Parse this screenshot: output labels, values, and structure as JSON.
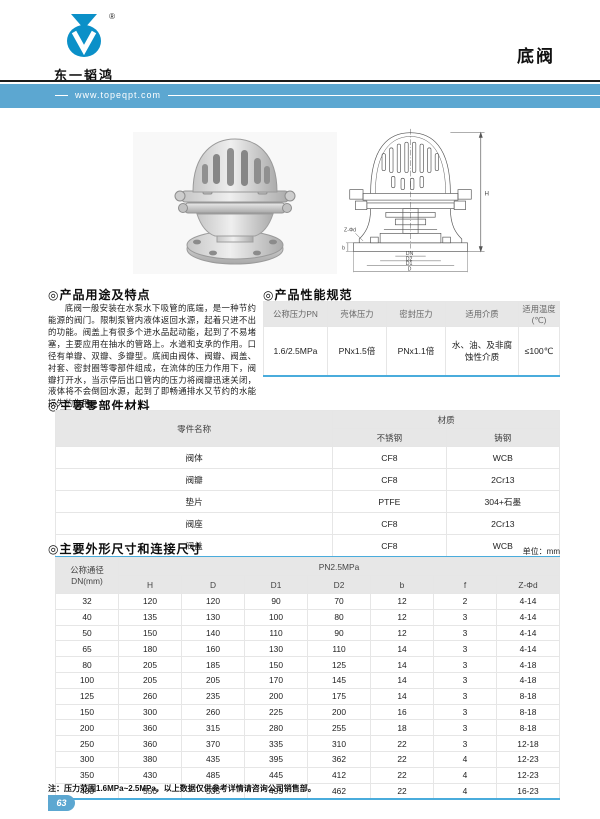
{
  "header": {
    "brand_name": "东一韬鸿",
    "registered": "®",
    "product_title": "底阀",
    "website": "www.topeqpt.com"
  },
  "usage": {
    "title": "◎产品用途及特点",
    "body": "底阀一般安装在水泵水下吸管的底端，是一种节约能源的阀门。限制泵管内液体返回水源，起着只进不出的功能。阀盖上有很多个进水品起动能，起到了不易堵塞，主要应用在抽水的管路上。水道和支承的作用。口径有单瓣、双瓣、多瓣型。底阀由阀体、阀瓣、阀盖、衬套、密封圈等零部件组成，在流体的压力作用下，阀瓣打开水，当示停后出口管内的压力将阀瓣迅速关闭，液体将不会倒回水源，起到了即畅通排水又节约的水能损失的作用。"
  },
  "performance": {
    "title": "◎产品性能规范",
    "headers": [
      "公称压力PN",
      "壳体压力",
      "密封压力",
      "适用介质",
      "适用温度(℃)"
    ],
    "row": [
      "1.6/2.5MPa",
      "PNx1.5倍",
      "PNx1.1倍",
      "水、油、及非腐蚀性介质",
      "≤100℃"
    ]
  },
  "materials": {
    "title": "◎主要零部件材料",
    "part_header": "零件名称",
    "material_header": "材质",
    "material_subheaders": [
      "不锈钢",
      "铸钢"
    ],
    "rows": [
      [
        "阀体",
        "CF8",
        "WCB"
      ],
      [
        "阀瓣",
        "CF8",
        "2Cr13"
      ],
      [
        "垫片",
        "PTFE",
        "304+石墨"
      ],
      [
        "阀座",
        "CF8",
        "2Cr13"
      ],
      [
        "阀盖",
        "CF8",
        "WCB"
      ]
    ]
  },
  "dimensions": {
    "title": "◎主要外形尺寸和连接尺寸",
    "unit_label": "单位：mm",
    "dn_header_line1": "公称通径",
    "dn_header_line2": "DN(mm)",
    "group_header": "PN2.5MPa",
    "columns": [
      "H",
      "D",
      "D1",
      "D2",
      "b",
      "f",
      "Z-Φd"
    ],
    "rows": [
      [
        "32",
        "120",
        "120",
        "90",
        "70",
        "12",
        "2",
        "4-14"
      ],
      [
        "40",
        "135",
        "130",
        "100",
        "80",
        "12",
        "3",
        "4-14"
      ],
      [
        "50",
        "150",
        "140",
        "110",
        "90",
        "12",
        "3",
        "4-14"
      ],
      [
        "65",
        "180",
        "160",
        "130",
        "110",
        "14",
        "3",
        "4-14"
      ],
      [
        "80",
        "205",
        "185",
        "150",
        "125",
        "14",
        "3",
        "4-18"
      ],
      [
        "100",
        "205",
        "205",
        "170",
        "145",
        "14",
        "3",
        "4-18"
      ],
      [
        "125",
        "260",
        "235",
        "200",
        "175",
        "14",
        "3",
        "8-18"
      ],
      [
        "150",
        "300",
        "260",
        "225",
        "200",
        "16",
        "3",
        "8-18"
      ],
      [
        "200",
        "360",
        "315",
        "280",
        "255",
        "18",
        "3",
        "8-18"
      ],
      [
        "250",
        "360",
        "370",
        "335",
        "310",
        "22",
        "3",
        "12-18"
      ],
      [
        "300",
        "380",
        "435",
        "395",
        "362",
        "22",
        "4",
        "12-23"
      ],
      [
        "350",
        "430",
        "485",
        "445",
        "412",
        "22",
        "4",
        "12-23"
      ],
      [
        "400",
        "550",
        "535",
        "495",
        "462",
        "22",
        "4",
        "16-23"
      ]
    ],
    "note": "注：压力范围1.6MPa~2.5MPa，以上数据仅供参考详情请咨询公司销售部。"
  },
  "drawing": {
    "labels": {
      "height": "H",
      "bolt": "Z-Φd",
      "b": "b",
      "dn": "DN",
      "d2": "D2",
      "d1": "D1",
      "d": "D"
    }
  },
  "footer": {
    "page_number": "63"
  },
  "colors": {
    "accent_blue": "#5CA7D1",
    "logo_blue": "#0B90C8",
    "table_accent": "#4AACDC"
  }
}
